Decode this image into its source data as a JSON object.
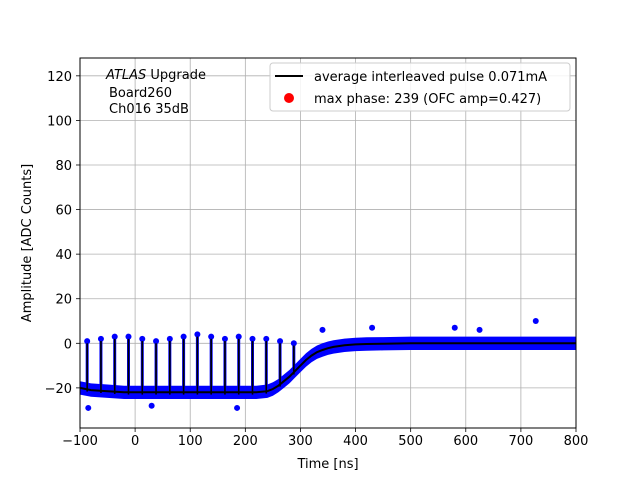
{
  "chart_data": {
    "type": "scatter",
    "xlabel": "Time [ns]",
    "ylabel": "Amplitude [ADC Counts]",
    "xlim": [
      -100,
      800
    ],
    "ylim": [
      -38,
      128
    ],
    "xticks": [
      -100,
      0,
      100,
      200,
      300,
      400,
      500,
      600,
      700,
      800
    ],
    "yticks": [
      -20,
      0,
      20,
      40,
      60,
      80,
      100,
      120
    ],
    "xtick_labels": [
      "−100",
      "0",
      "100",
      "200",
      "300",
      "400",
      "500",
      "600",
      "700",
      "800"
    ],
    "ytick_labels": [
      "−20",
      "0",
      "20",
      "40",
      "60",
      "80",
      "100",
      "120"
    ],
    "grid": true,
    "legend_position": "top-right",
    "annotation": {
      "italic": "ATLAS",
      "rest": " Upgrade",
      "line2": "Board260",
      "line3": "Ch016 35dB"
    },
    "series": [
      {
        "name": "average interleaved pulse 0.071mA",
        "kind": "line",
        "color": "#000000",
        "x": [
          -100,
          -80,
          -50,
          -20,
          0,
          50,
          100,
          150,
          200,
          220,
          240,
          250,
          260,
          270,
          280,
          290,
          300,
          310,
          320,
          330,
          340,
          350,
          360,
          380,
          400,
          420,
          450,
          500,
          600,
          700,
          800
        ],
        "y": [
          -20,
          -21,
          -21.5,
          -22,
          -22,
          -22,
          -22,
          -22,
          -22,
          -22,
          -21.5,
          -20.5,
          -19,
          -17,
          -15,
          -12.5,
          -10,
          -7.5,
          -5.5,
          -4,
          -3,
          -2.2,
          -1.6,
          -0.9,
          -0.5,
          -0.3,
          -0.2,
          0,
          0,
          0,
          0
        ]
      },
      {
        "name": "max phase: 239 (OFC amp=0.427)",
        "kind": "scatter",
        "color": "#ff0000",
        "x": [],
        "y": []
      },
      {
        "name": "",
        "kind": "scatter-band",
        "color": "#0000ff",
        "band_half_width": 3,
        "spike_x": [
          -87,
          -62,
          -37,
          -12,
          13,
          38,
          63,
          88,
          113,
          138,
          163,
          188,
          213,
          238,
          263,
          288
        ],
        "spike_y": [
          1,
          2,
          3,
          3,
          2,
          1,
          2,
          3,
          4,
          3,
          2,
          3,
          2,
          2,
          1,
          0
        ],
        "outliers_x": [
          -85,
          30,
          185,
          340,
          430,
          580,
          625,
          727
        ],
        "outliers_y": [
          -29,
          -28,
          -29,
          6,
          7,
          7,
          6,
          10
        ]
      }
    ]
  }
}
